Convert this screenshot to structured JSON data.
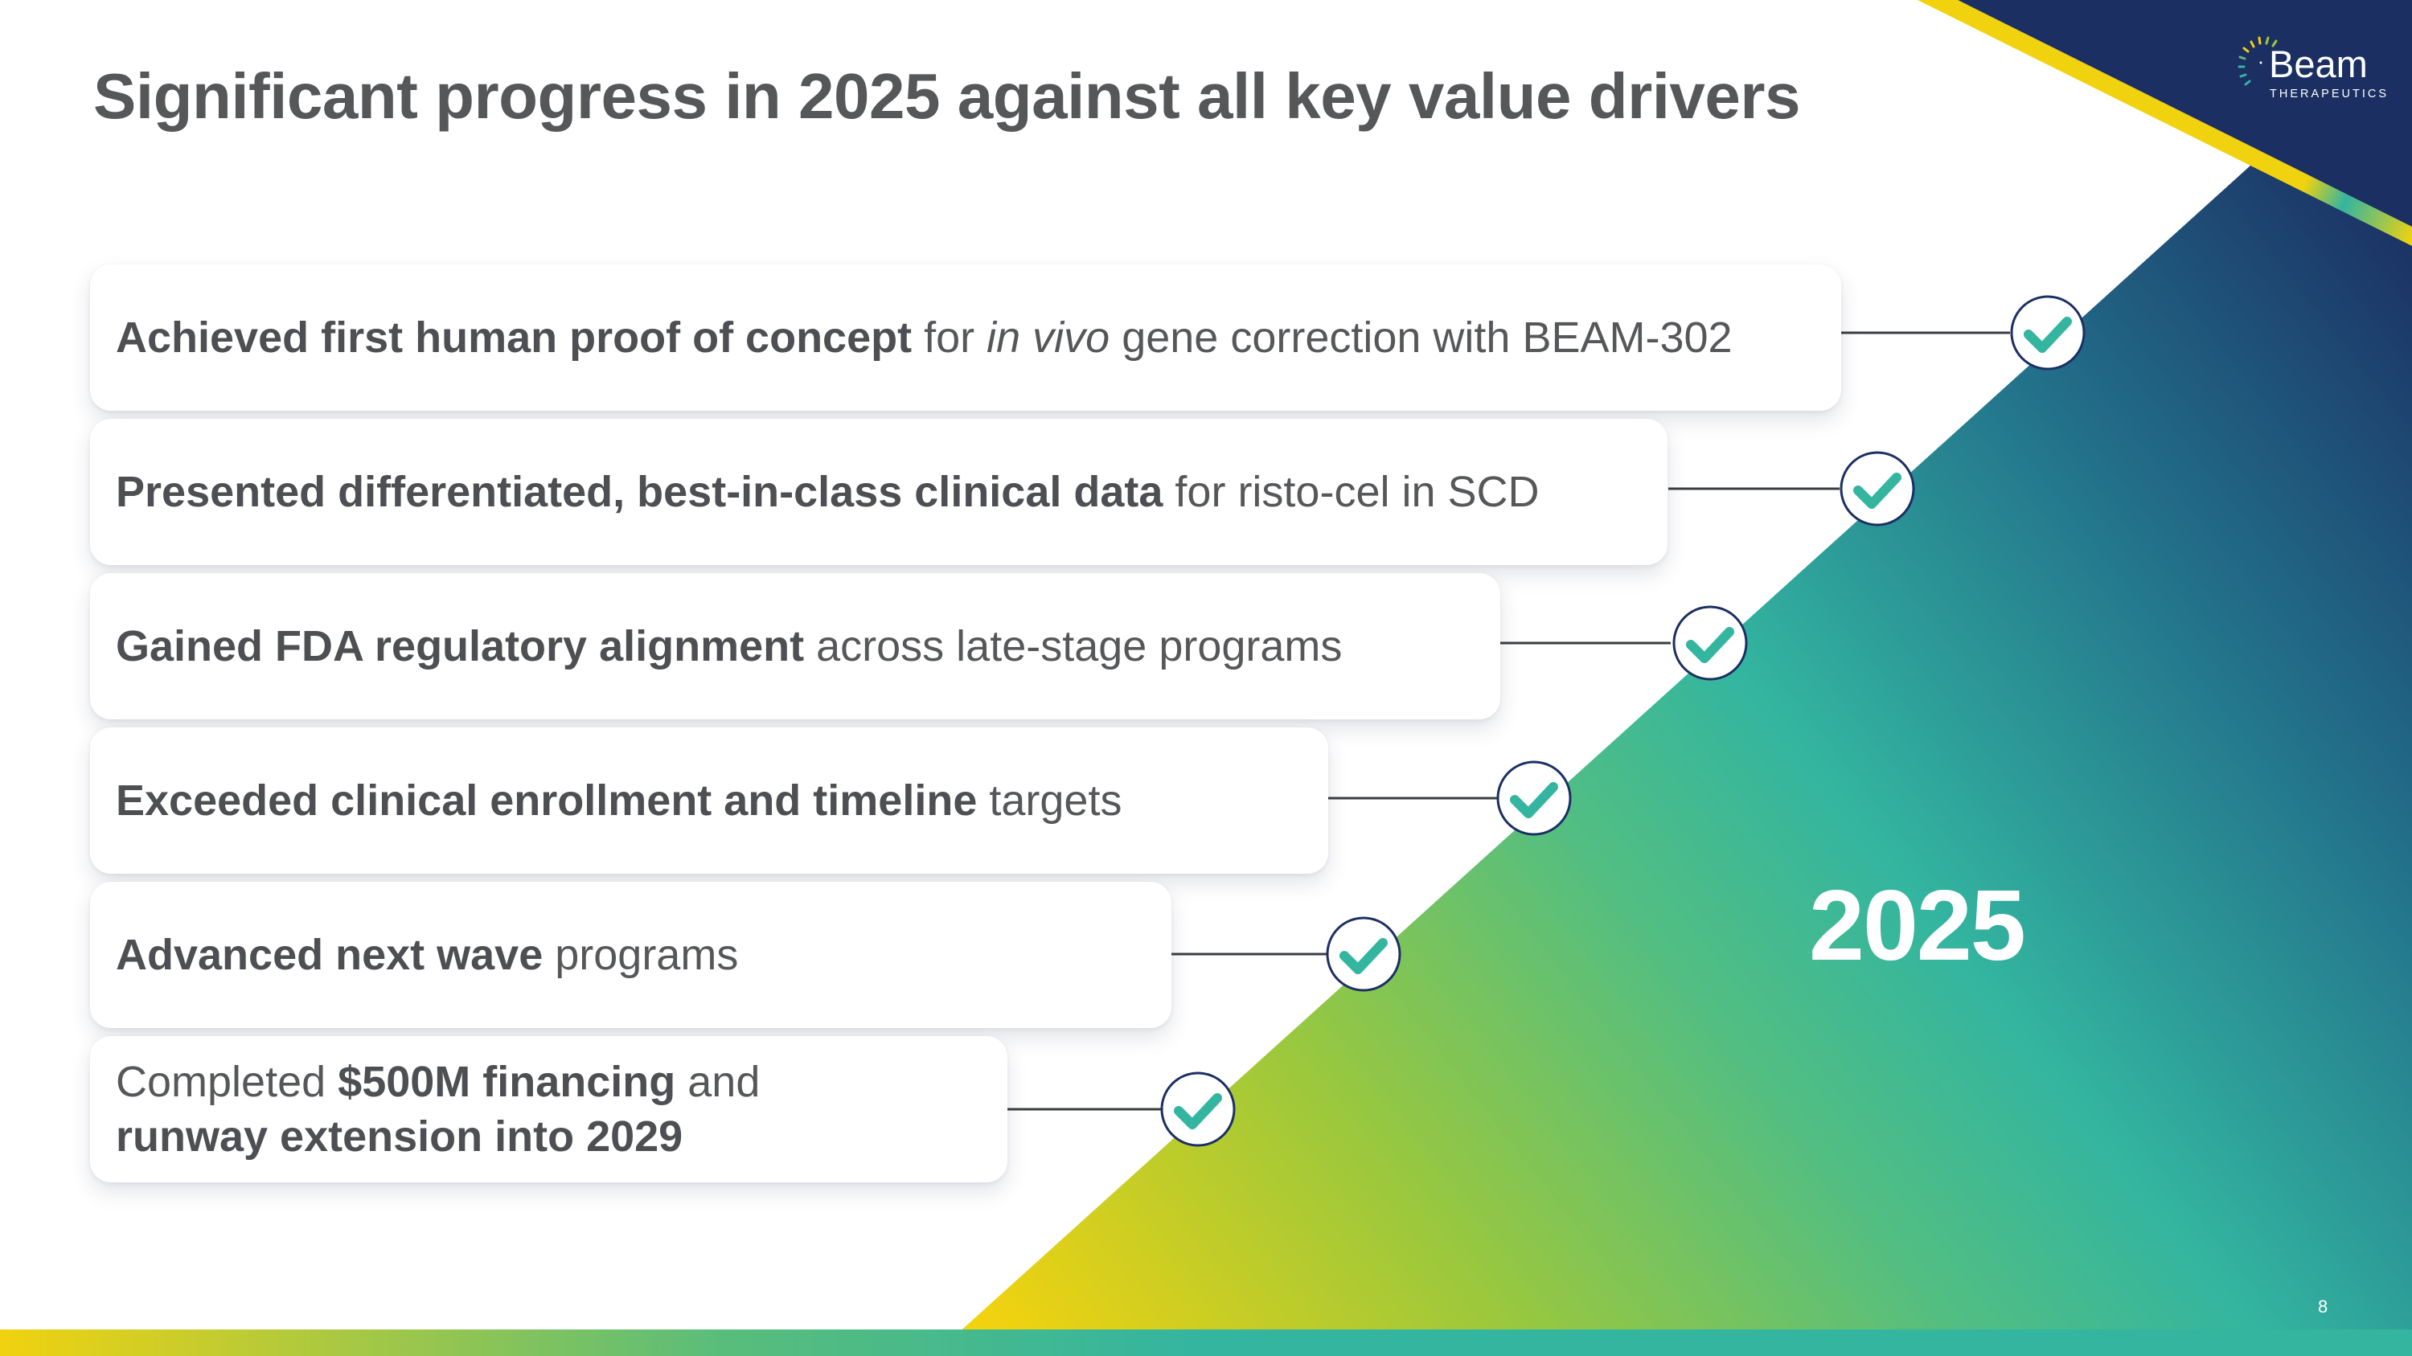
{
  "title": "Significant progress in 2025 against all key value drivers",
  "logo": {
    "word": "Beam",
    "sub": "THERAPEUTICS"
  },
  "items": [
    {
      "parts": [
        {
          "b": "Achieved first human proof of concept"
        },
        {
          "t": " for "
        },
        {
          "i": "in vivo"
        },
        {
          "t": " gene correction with BEAM-302"
        }
      ]
    },
    {
      "parts": [
        {
          "b": "Presented differentiated, best-in-class clinical data"
        },
        {
          "t": " for risto-cel in SCD"
        }
      ]
    },
    {
      "parts": [
        {
          "b": "Gained FDA regulatory alignment"
        },
        {
          "t": " across late-stage programs"
        }
      ]
    },
    {
      "parts": [
        {
          "b": "Exceeded clinical enrollment and timeline"
        },
        {
          "t": " targets"
        }
      ]
    },
    {
      "parts": [
        {
          "b": "Advanced next wave"
        },
        {
          "t": " programs"
        }
      ]
    },
    {
      "parts": [
        {
          "t": "Completed "
        },
        {
          "b": "$500M financing"
        },
        {
          "t": " and"
        },
        {
          "br": true
        },
        {
          "b": "runway extension into 2029"
        }
      ]
    }
  ],
  "year": "2025",
  "page_number": "8",
  "colors": {
    "navy": "#1b2f63",
    "teal": "#33b5a0",
    "yellow": "#f1d20f",
    "green": "#8cc63f",
    "title_gray": "#555759"
  },
  "icons": [
    "check-circle-icon",
    "beam-logo-burst-icon"
  ]
}
